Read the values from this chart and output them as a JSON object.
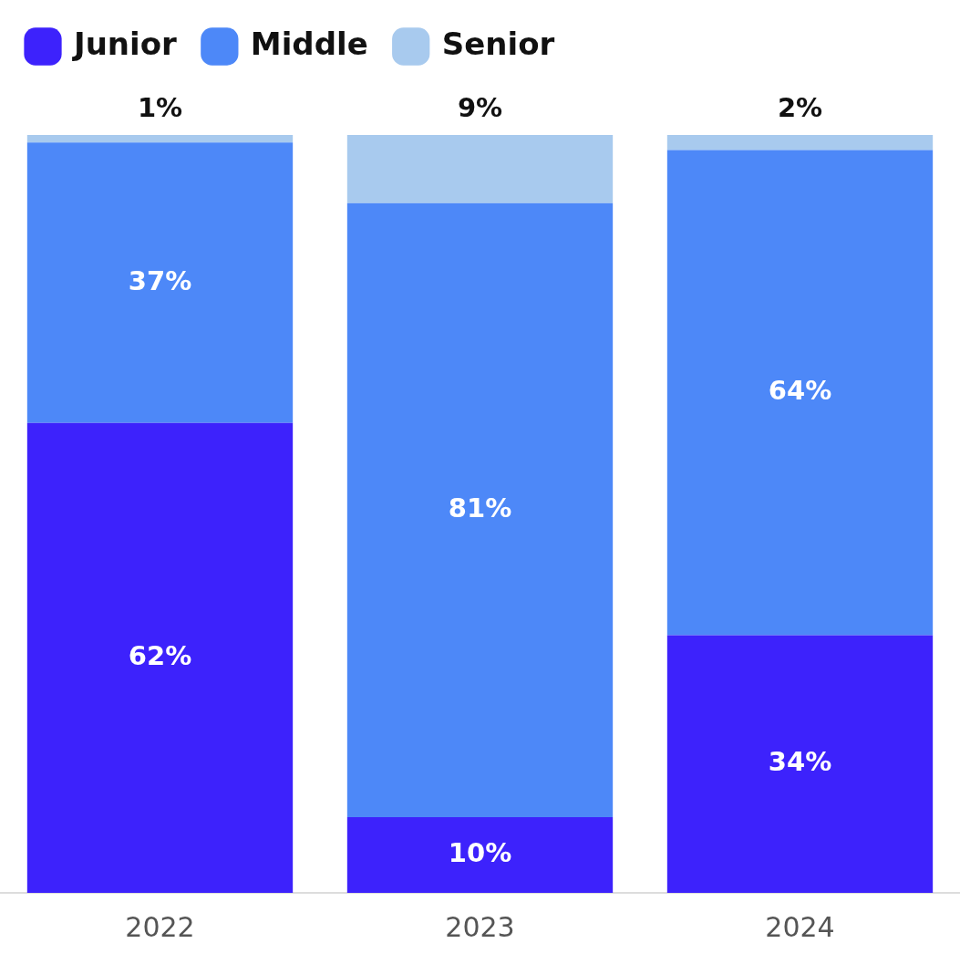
{
  "chart_data": {
    "type": "bar",
    "stacked": true,
    "categories": [
      "2022",
      "2023",
      "2024"
    ],
    "series": [
      {
        "name": "Junior",
        "color": "#3d22fc",
        "values": [
          62,
          10,
          34
        ],
        "value_labels": [
          "62%",
          "10%",
          "34%"
        ]
      },
      {
        "name": "Middle",
        "color": "#4d88f8",
        "values": [
          37,
          81,
          64
        ],
        "value_labels": [
          "37%",
          "81%",
          "64%"
        ]
      },
      {
        "name": "Senior",
        "color": "#a8caee",
        "values": [
          1,
          9,
          2
        ],
        "value_labels": [
          "1%",
          "9%",
          "2%"
        ]
      }
    ],
    "ylim": [
      0,
      100
    ],
    "tick_labels": "x",
    "grid": false,
    "legend": "top left"
  }
}
